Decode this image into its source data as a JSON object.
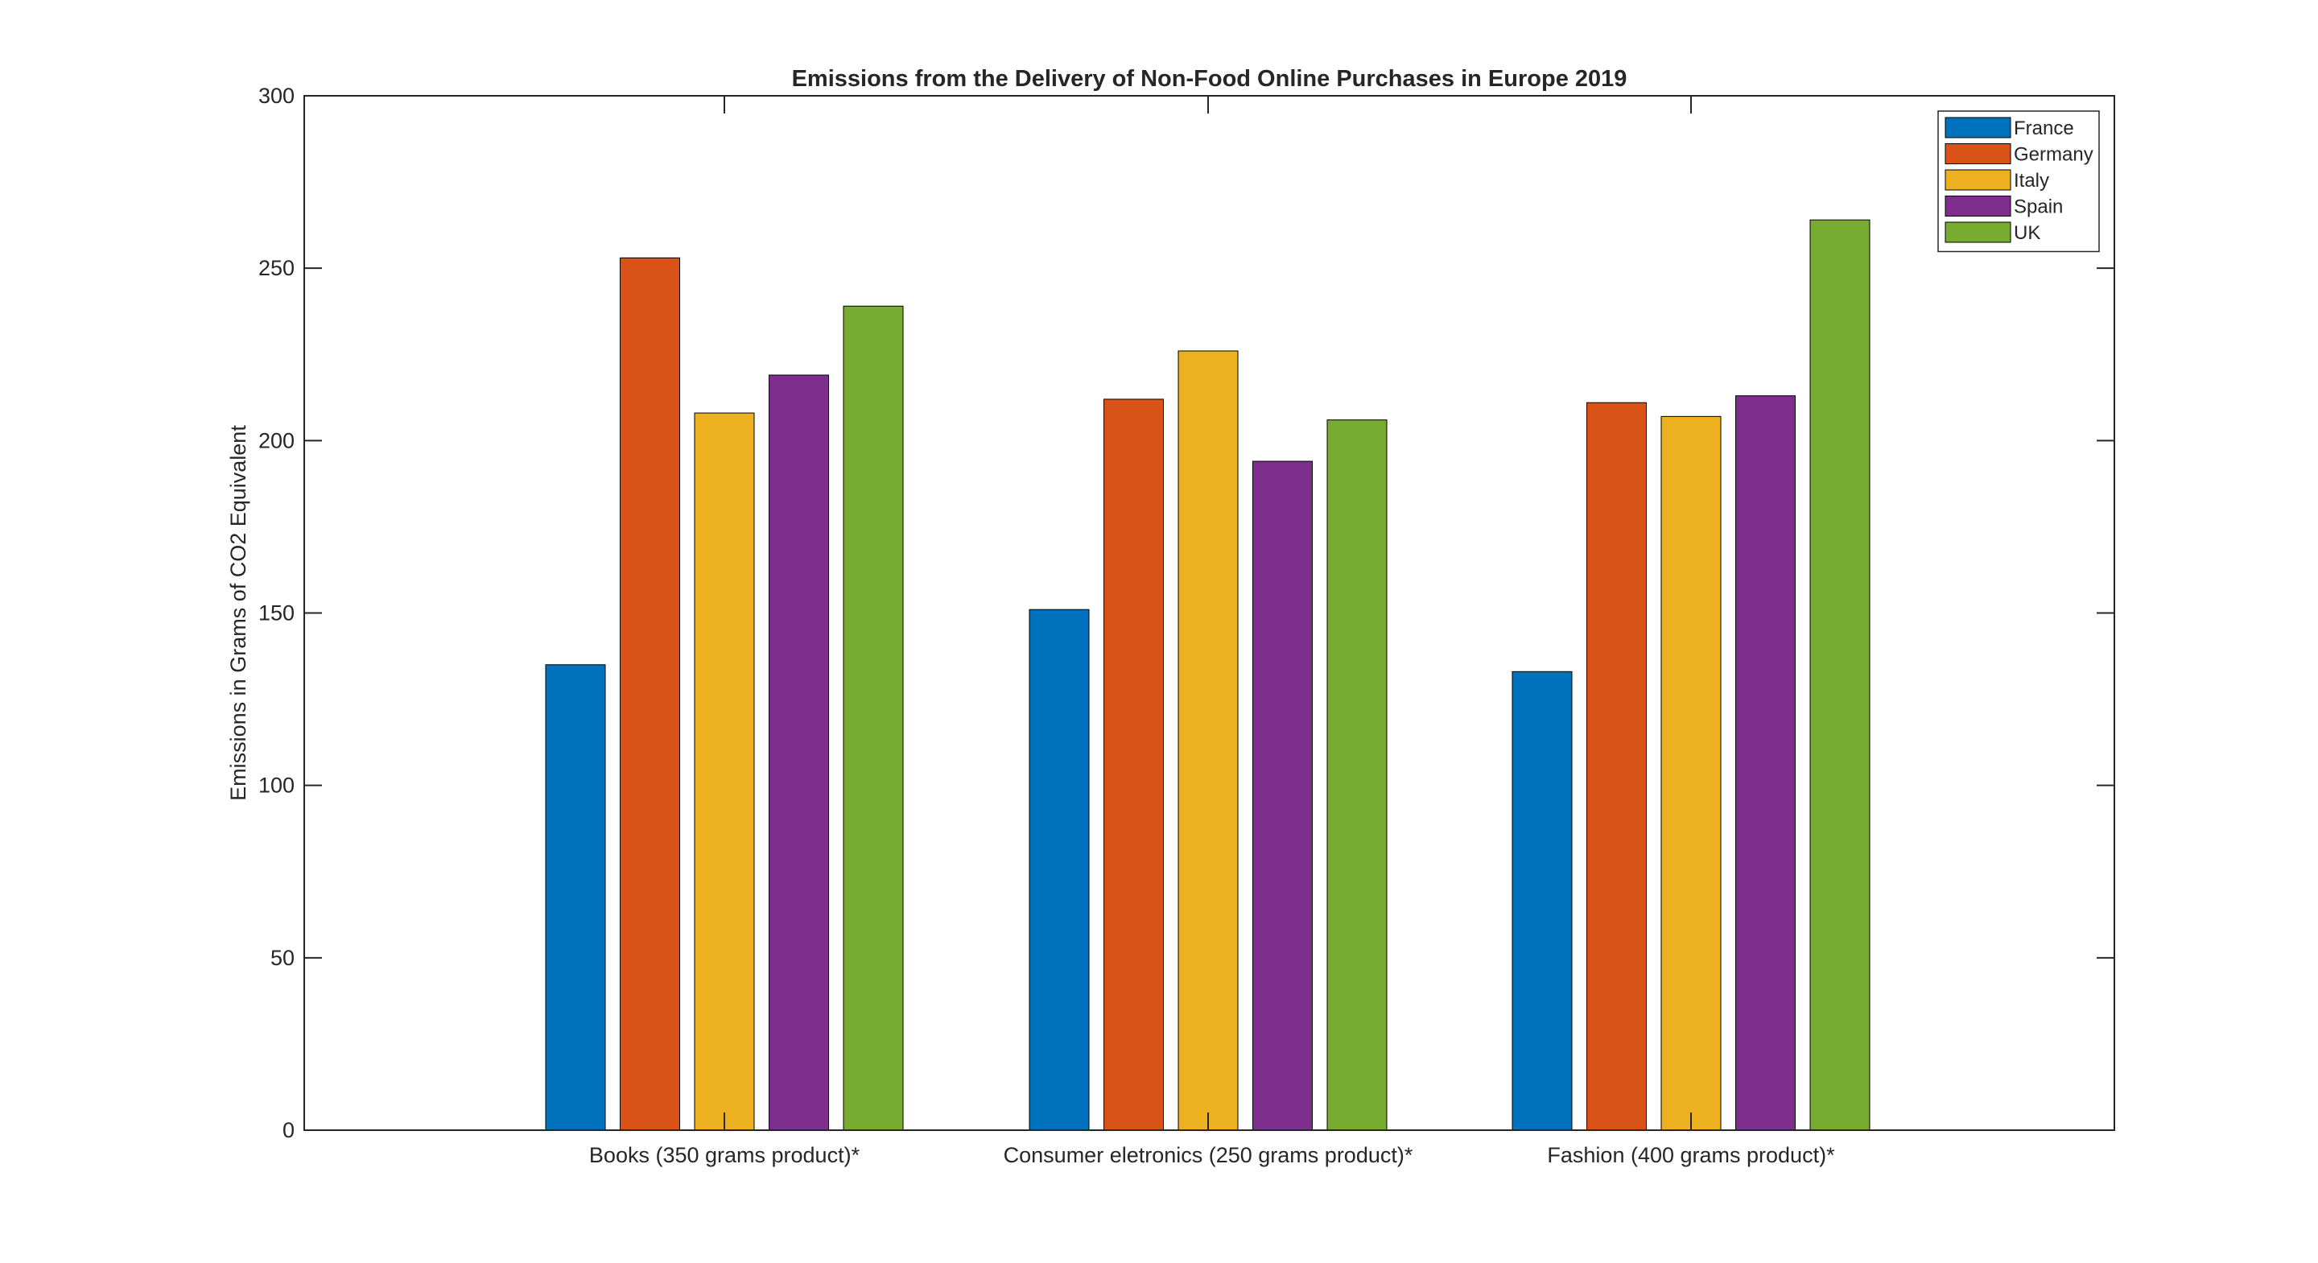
{
  "chart_data": {
    "type": "bar",
    "title": "Emissions from the Delivery of Non-Food Online Purchases in Europe 2019",
    "xlabel": "",
    "ylabel": "Emissions in Grams of CO2 Equivalent",
    "ylim": [
      0,
      300
    ],
    "yticks": [
      0,
      50,
      100,
      150,
      200,
      250,
      300
    ],
    "grid": false,
    "legend_position": "top-right",
    "categories": [
      "Books (350 grams product)*",
      "Consumer eletronics (250 grams product)*",
      "Fashion (400 grams product)*"
    ],
    "series": [
      {
        "name": "France",
        "color": "#0072BD",
        "values": [
          135,
          151,
          133
        ]
      },
      {
        "name": "Germany",
        "color": "#D95319",
        "values": [
          253,
          212,
          211
        ]
      },
      {
        "name": "Italy",
        "color": "#EDB120",
        "values": [
          208,
          226,
          207
        ]
      },
      {
        "name": "Spain",
        "color": "#7E2F8E",
        "values": [
          219,
          194,
          213
        ]
      },
      {
        "name": "UK",
        "color": "#77AC30",
        "values": [
          239,
          206,
          264
        ]
      }
    ]
  }
}
